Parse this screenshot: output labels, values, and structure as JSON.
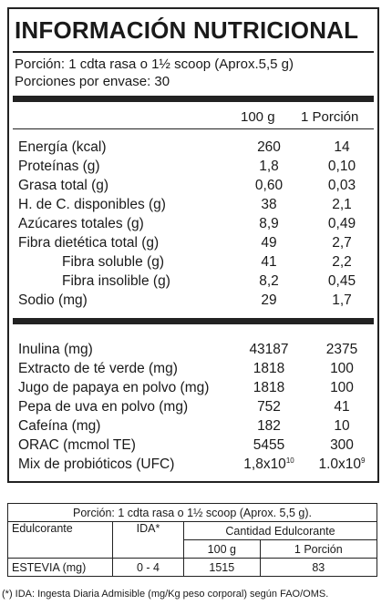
{
  "title": "INFORMACIÓN NUTRICIONAL",
  "serving_size": "Porción: 1 cdta rasa o 1½ scoop (Aprox.5,5 g)",
  "servings_per_container": "Porciones por envase: 30",
  "columns": {
    "per100": "100 g",
    "perServing": "1 Porción"
  },
  "nutrients": [
    {
      "name": "Energía (kcal)",
      "per100": "260",
      "perServing": "14"
    },
    {
      "name": "Proteínas (g)",
      "per100": "1,8",
      "perServing": "0,10"
    },
    {
      "name": "Grasa total (g)",
      "per100": "0,60",
      "perServing": "0,03"
    },
    {
      "name": "H. de C. disponibles (g)",
      "per100": "38",
      "perServing": "2,1"
    },
    {
      "name": "Azúcares totales (g)",
      "per100": "8,9",
      "perServing": "0,49"
    },
    {
      "name": "Fibra dietética total (g)",
      "per100": "49",
      "perServing": "2,7"
    },
    {
      "name": "Fibra soluble (g)",
      "per100": "41",
      "perServing": "2,2"
    },
    {
      "name": "Fibra insolible (g)",
      "per100": "8,2",
      "perServing": "0,45"
    },
    {
      "name": "Sodio (mg)",
      "per100": "29",
      "perServing": "1,7"
    }
  ],
  "ingredients": [
    {
      "name": "Inulina (mg)",
      "per100": "43187",
      "perServing": "2375"
    },
    {
      "name": "Extracto de té verde (mg)",
      "per100": "1818",
      "perServing": "100"
    },
    {
      "name": "Jugo de papaya en polvo (mg)",
      "per100": "1818",
      "perServing": "100"
    },
    {
      "name": "Pepa de uva en polvo (mg)",
      "per100": "752",
      "perServing": "41"
    },
    {
      "name": "Cafeína (mg)",
      "per100": "182",
      "perServing": "10"
    },
    {
      "name": "ORAC (mcmol TE)",
      "per100": "5455",
      "perServing": "300"
    },
    {
      "name": "Mix de probióticos (UFC)",
      "per100_base": "1,8x10",
      "per100_exp": "10",
      "perServing_base": "1.0x10",
      "perServing_exp": "9"
    }
  ],
  "sweetener": {
    "serving": "Porción: 1 cdta rasa o 1½ scoop (Aprox. 5,5 g).",
    "col_sweetener": "Edulcorante",
    "col_ida": "IDA*",
    "col_amount": "Cantidad Edulcorante",
    "col_per100": "100 g",
    "col_perServing": "1 Porción",
    "row_name": "ESTEVIA (mg)",
    "row_ida": "0 - 4",
    "row_per100": "1515",
    "row_perServing": "83"
  },
  "footnote": "(*) IDA: Ingesta Diaria Admisible (mg/Kg peso corporal) según FAO/OMS."
}
